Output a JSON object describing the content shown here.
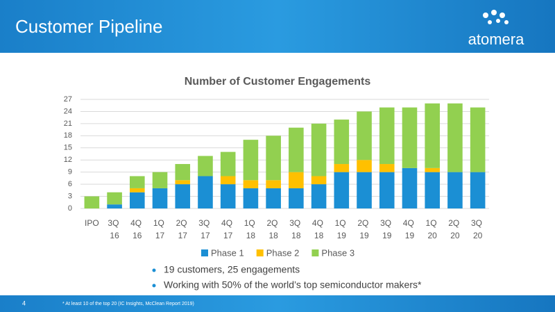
{
  "header": {
    "title": "Customer Pipeline",
    "logo": "atomera"
  },
  "chart_data": {
    "type": "stacked_bar",
    "title": "Number of Customer Engagements",
    "categories": [
      "IPO",
      "3Q 16",
      "4Q 16",
      "1Q 17",
      "2Q 17",
      "3Q 17",
      "4Q 17",
      "1Q 18",
      "2Q 18",
      "3Q 18",
      "4Q 18",
      "1Q 19",
      "2Q 19",
      "3Q 19",
      "4Q 19",
      "1Q 20",
      "2Q 20",
      "3Q 20"
    ],
    "series": [
      {
        "name": "Phase 1",
        "color": "#1b8fd4",
        "values": [
          0,
          1,
          4,
          5,
          6,
          8,
          6,
          5,
          5,
          5,
          6,
          9,
          9,
          9,
          10,
          9,
          9,
          9
        ]
      },
      {
        "name": "Phase 2",
        "color": "#ffc000",
        "values": [
          0,
          0,
          1,
          0,
          1,
          0,
          2,
          2,
          2,
          4,
          2,
          2,
          3,
          2,
          0,
          1,
          0,
          0
        ]
      },
      {
        "name": "Phase 3",
        "color": "#92d050",
        "values": [
          3,
          3,
          3,
          4,
          4,
          5,
          6,
          10,
          11,
          11,
          13,
          11,
          12,
          14,
          15,
          16,
          17,
          16
        ]
      }
    ],
    "ylim": [
      0,
      27
    ],
    "yticks": [
      0,
      3,
      6,
      9,
      12,
      15,
      18,
      21,
      24,
      27
    ],
    "grid": true,
    "legend": "bottom"
  },
  "bullets": [
    "19 customers, 25 engagements",
    "Working with 50% of the world’s top semiconductor makers*"
  ],
  "footer": {
    "page_number": "4",
    "footnote": "* At least 10 of the top 20 (IC Insights, McClean Report 2019)"
  }
}
